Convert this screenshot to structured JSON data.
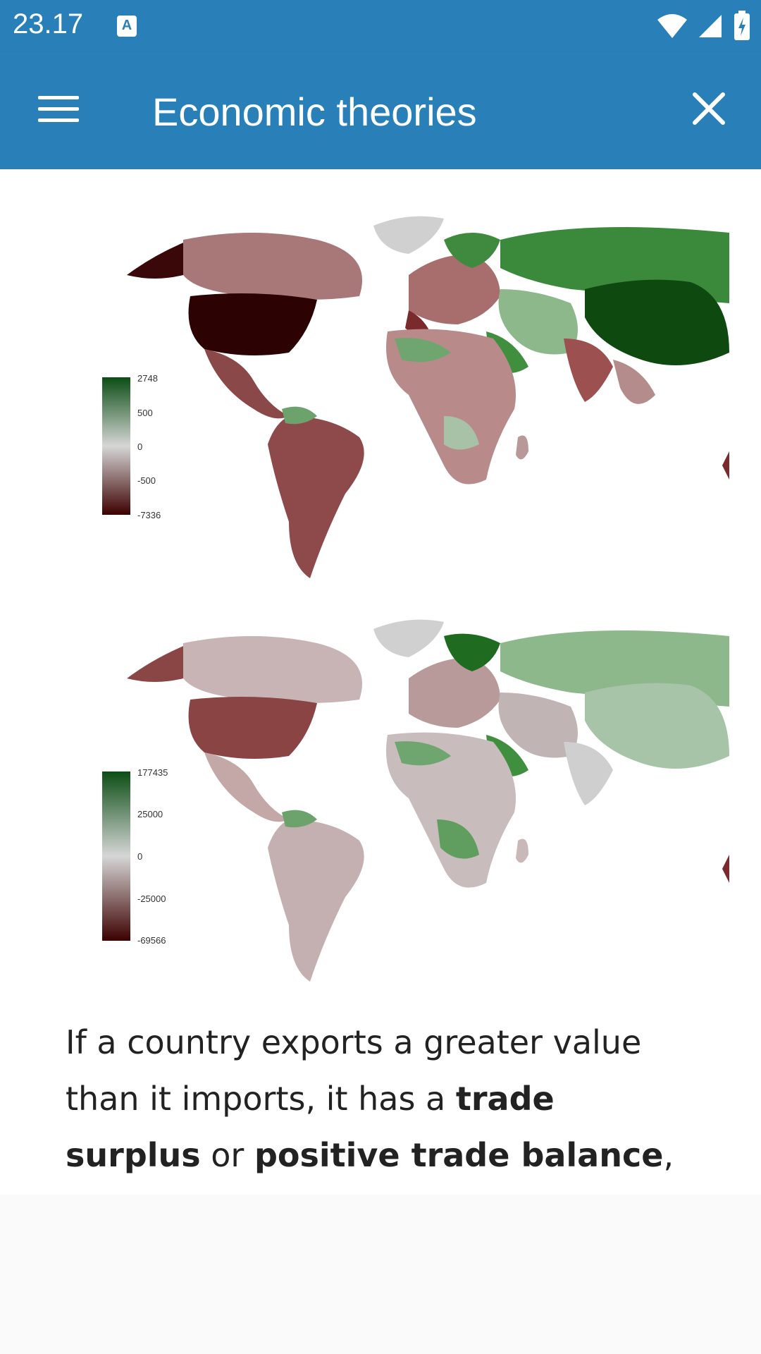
{
  "status_bar": {
    "time": "23.17",
    "notification_icon": "a-notification-icon",
    "wifi_icon": "wifi-icon",
    "signal_icon": "signal-icon",
    "battery_icon": "battery-charging-icon"
  },
  "app_bar": {
    "title": "Economic theories",
    "menu_icon": "hamburger-menu-icon",
    "close_icon": "close-icon",
    "background_color": "#2980b9"
  },
  "maps": [
    {
      "legend_ticks": [
        "2748",
        "500",
        "0",
        "-500",
        "-7336"
      ],
      "colors": {
        "positive": "#0b4d14",
        "neutral": "#d3d3d3",
        "negative": "#3d0000"
      }
    },
    {
      "legend_ticks": [
        "177435",
        "25000",
        "0",
        "-25000",
        "-69566"
      ],
      "colors": {
        "positive": "#0b4d14",
        "neutral": "#d3d3d3",
        "negative": "#3d0000"
      }
    }
  ],
  "article": {
    "p1_a": "If a country exports a greater value than it imports, it has a ",
    "p1_b": "trade surplus",
    "p1_c": " or ",
    "p1_d": "positive trade balance",
    "p1_e": ", and conversely, if a country"
  },
  "back_to_top": {
    "icon": "chevron-up-icon"
  }
}
